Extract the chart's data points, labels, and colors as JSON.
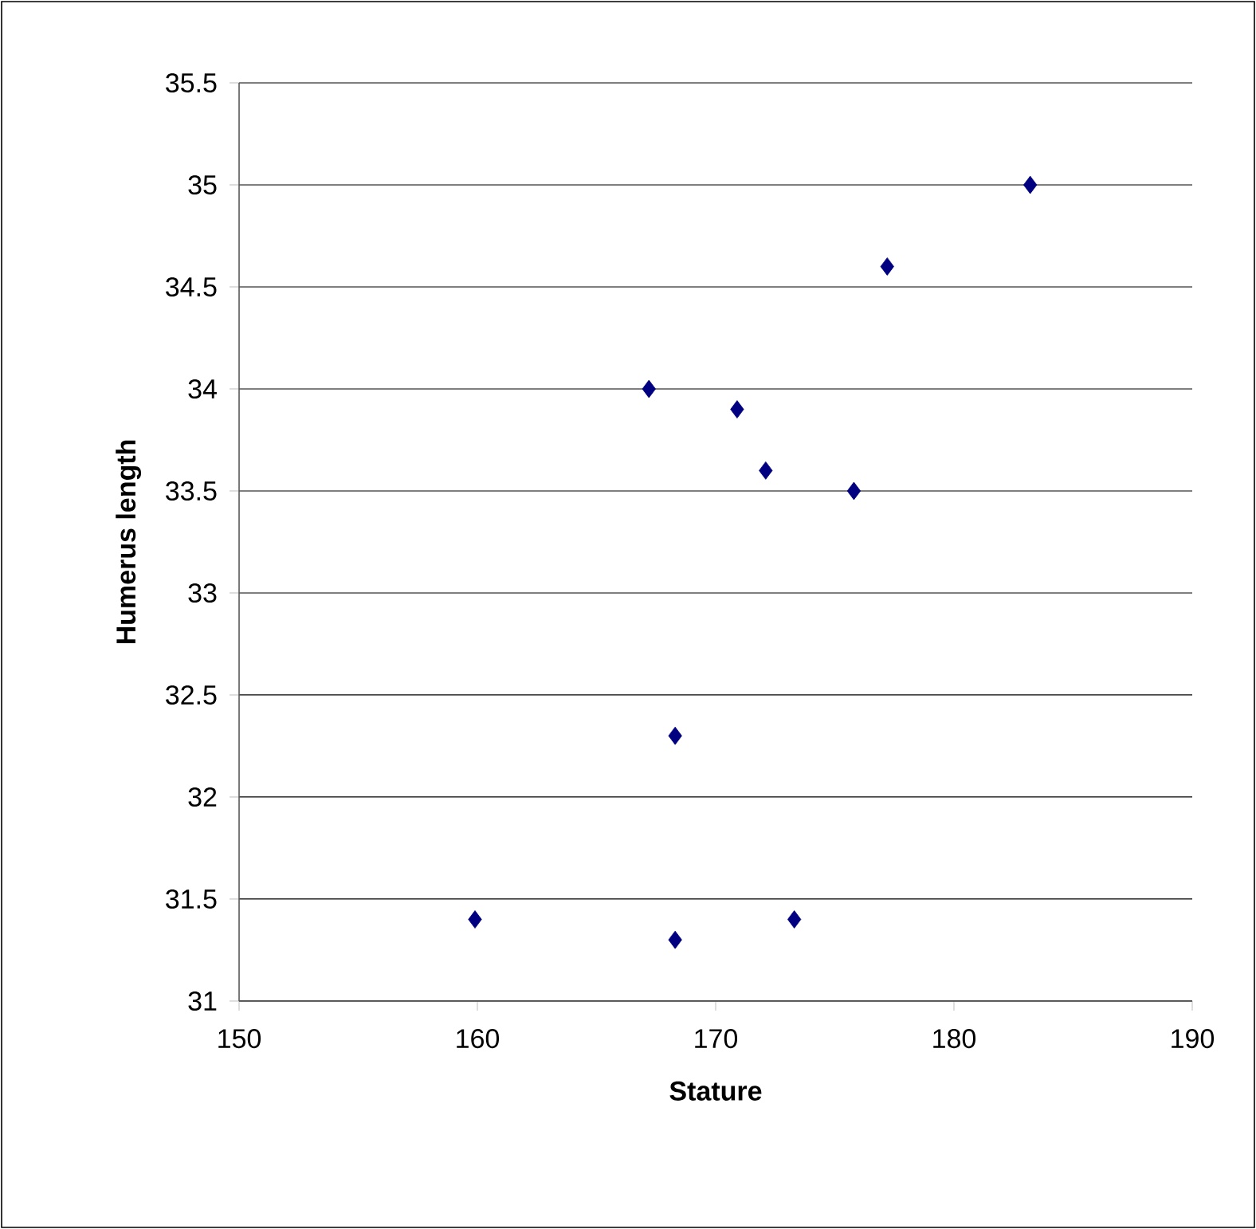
{
  "chart_data": {
    "type": "scatter",
    "xlabel": "Stature",
    "ylabel": "Humerus length",
    "x": [
      159.9,
      167.2,
      170.9,
      172.1,
      175.8,
      177.2,
      183.2,
      168.3,
      168.3,
      173.3
    ],
    "series": [
      {
        "color": "#000080",
        "values": [
          31.4,
          34.0,
          33.9,
          33.6,
          33.5,
          34.6,
          35.0,
          32.3,
          31.3,
          31.4
        ]
      }
    ],
    "xlim": [
      150,
      190
    ],
    "xticks": [
      150,
      160,
      170,
      180,
      190
    ],
    "ylim": [
      31,
      35.5
    ],
    "yticks": [
      31,
      31.5,
      32,
      32.5,
      33,
      33.5,
      34,
      34.5,
      35,
      35.5
    ],
    "grid": "y",
    "marker": "diamond"
  }
}
